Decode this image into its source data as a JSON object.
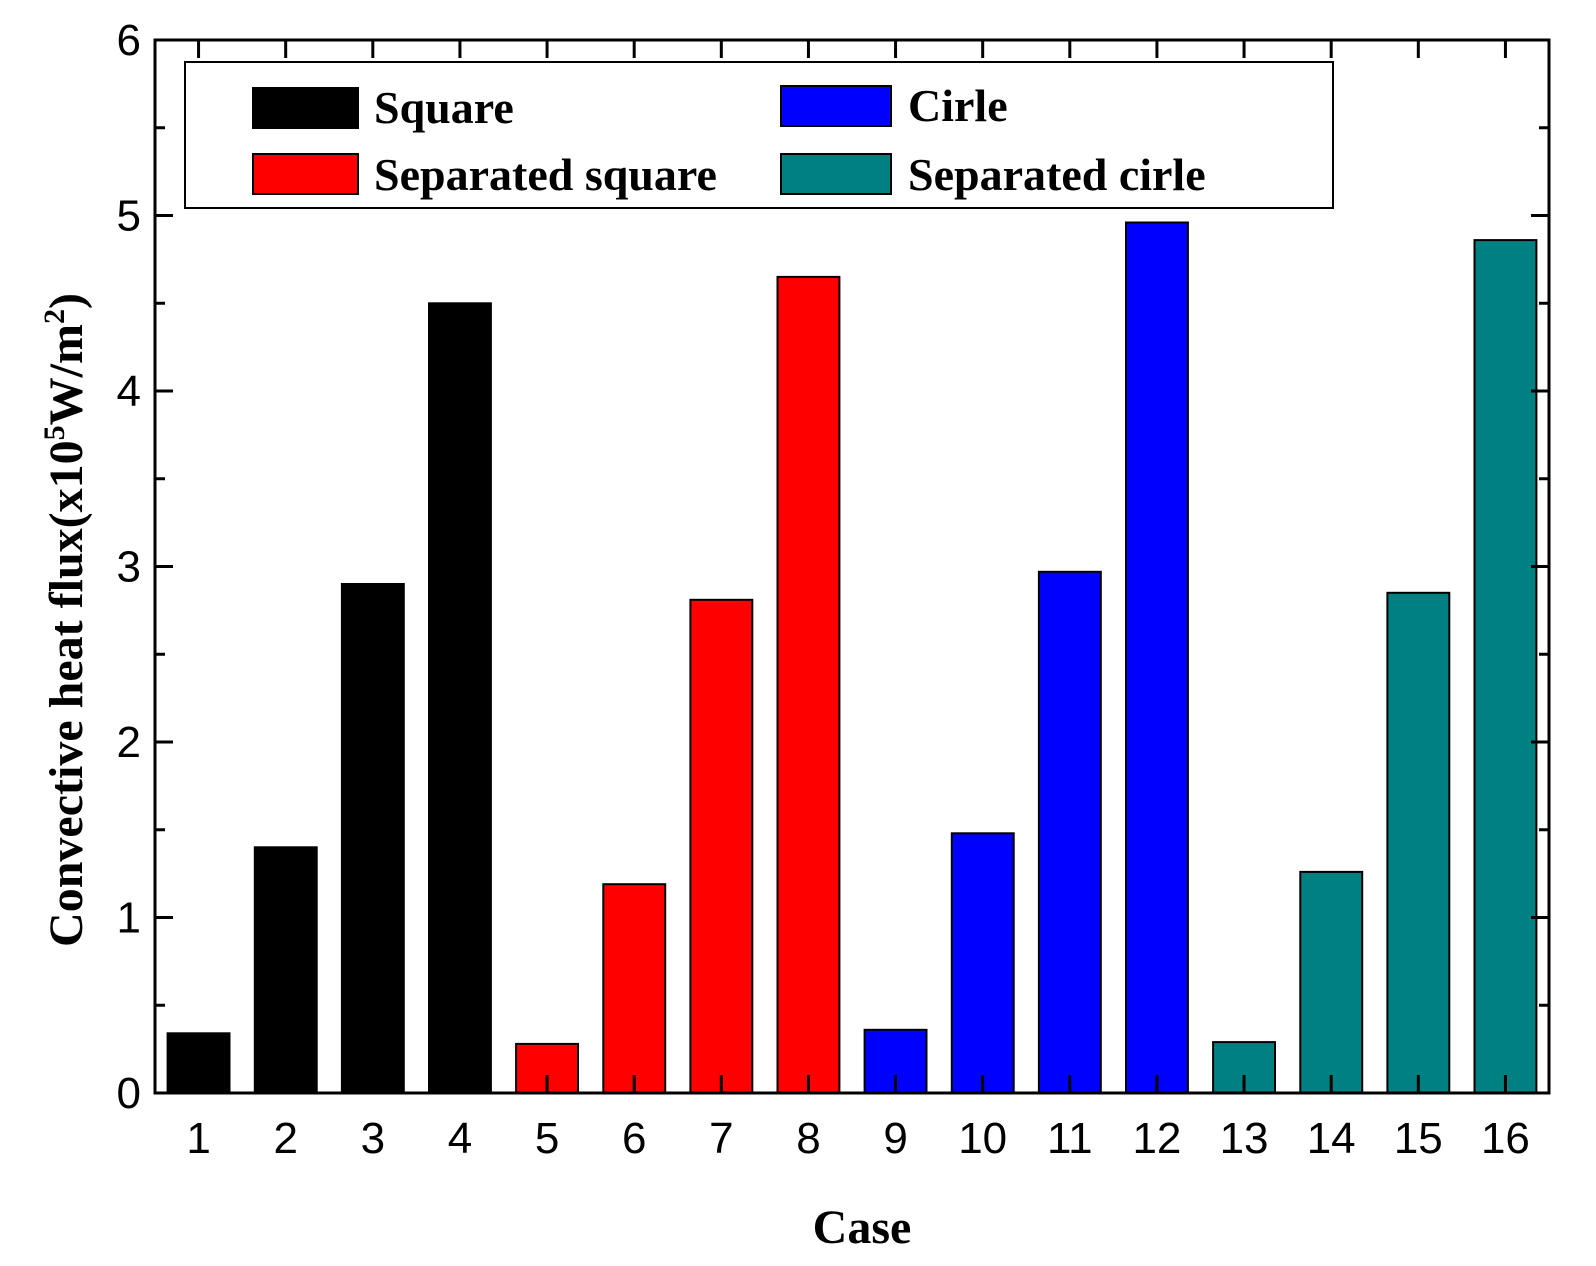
{
  "chart_data": {
    "type": "bar",
    "title": "",
    "xlabel": "Case",
    "ylabel": {
      "main": "Convective heat flux(x10",
      "exp": "5",
      "unit": "W/m",
      "unit_exp": "2",
      "close": ")"
    },
    "ylim": [
      0,
      6
    ],
    "yticks": [
      "0",
      "1",
      "2",
      "3",
      "4",
      "5",
      "6"
    ],
    "categories": [
      "1",
      "2",
      "3",
      "4",
      "5",
      "6",
      "7",
      "8",
      "9",
      "10",
      "11",
      "12",
      "13",
      "14",
      "15",
      "16"
    ],
    "values": [
      0.34,
      1.4,
      2.9,
      4.5,
      0.28,
      1.19,
      2.81,
      4.65,
      0.36,
      1.48,
      2.97,
      4.96,
      0.29,
      1.26,
      2.85,
      4.86
    ],
    "series": [
      {
        "name": "Square",
        "color": "#000000",
        "cases": [
          1,
          2,
          3,
          4
        ]
      },
      {
        "name": "Separated square",
        "color": "#ff0000",
        "cases": [
          5,
          6,
          7,
          8
        ]
      },
      {
        "name": "Cirle",
        "color": "#0000ff",
        "cases": [
          9,
          10,
          11,
          12
        ]
      },
      {
        "name": "Separated cirle",
        "color": "#008080",
        "cases": [
          13,
          14,
          15,
          16
        ]
      }
    ],
    "legend_position": "top",
    "grid": false
  }
}
